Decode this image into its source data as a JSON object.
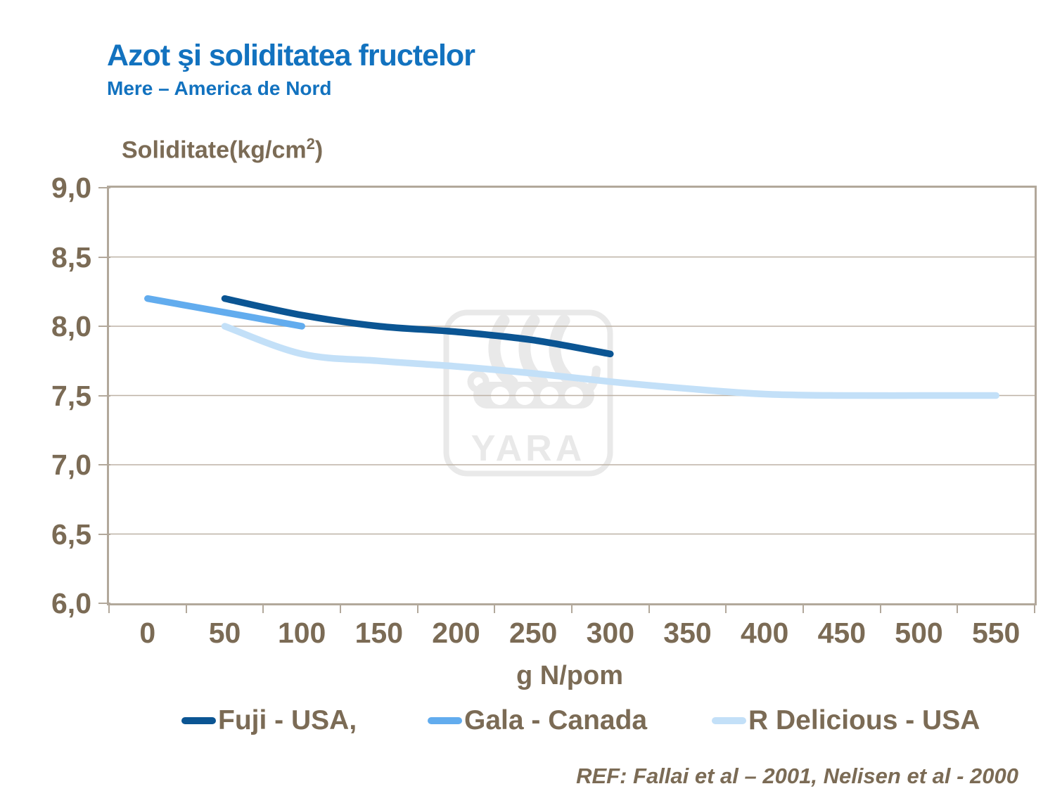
{
  "header": {
    "title": "Azot şi soliditatea fructelor",
    "subtitle": "Mere – America de Nord"
  },
  "colors": {
    "title_blue": "#1272bf",
    "text_taupe": "#7b6b55",
    "grid": "#bdb2a5",
    "border": "#b2a89b",
    "watermark": "#e9e9e9"
  },
  "watermark": {
    "text": "YARA"
  },
  "footer": {
    "reference": "REF: Fallai et al – 2001, Nelisen et al - 2000"
  },
  "chart_data": {
    "type": "line",
    "title": "Azot şi soliditatea fructelor",
    "subtitle": "Mere – America de Nord",
    "xlabel": "g N/pom",
    "ylabel": "Soliditate(kg/cm2)",
    "ylabel_parts": {
      "prefix": "Soliditate(kg/cm",
      "sup": "2",
      "suffix": ")"
    },
    "ylim": [
      6.0,
      9.0
    ],
    "y_ticks": [
      9.0,
      8.5,
      8.0,
      7.5,
      7.0,
      6.5,
      6.0
    ],
    "y_tick_labels": [
      "9,0",
      "8,5",
      "8,0",
      "7,5",
      "7,0",
      "6,5",
      "6,0"
    ],
    "x_ticks": [
      0,
      50,
      100,
      150,
      200,
      250,
      300,
      350,
      400,
      450,
      500,
      550
    ],
    "x_tick_labels": [
      "0",
      "50",
      "100",
      "150",
      "200",
      "250",
      "300",
      "350",
      "400",
      "450",
      "500",
      "550"
    ],
    "grid": "horizontal",
    "legend_position": "bottom",
    "series": [
      {
        "name": "Fuji - USA,",
        "color": "#0b5593",
        "x": [
          50,
          100,
          150,
          200,
          250,
          300
        ],
        "values": [
          8.2,
          8.08,
          8.0,
          7.96,
          7.9,
          7.8
        ]
      },
      {
        "name": "Gala - Canada",
        "color": "#62acee",
        "x": [
          0,
          50,
          100
        ],
        "values": [
          8.2,
          8.1,
          8.0
        ]
      },
      {
        "name": "R Delicious - USA",
        "color": "#c3e0f8",
        "x": [
          50,
          100,
          150,
          200,
          250,
          300,
          350,
          400,
          450,
          500,
          550
        ],
        "values": [
          8.0,
          7.8,
          7.75,
          7.71,
          7.66,
          7.6,
          7.55,
          7.51,
          7.5,
          7.5,
          7.5
        ]
      }
    ]
  }
}
